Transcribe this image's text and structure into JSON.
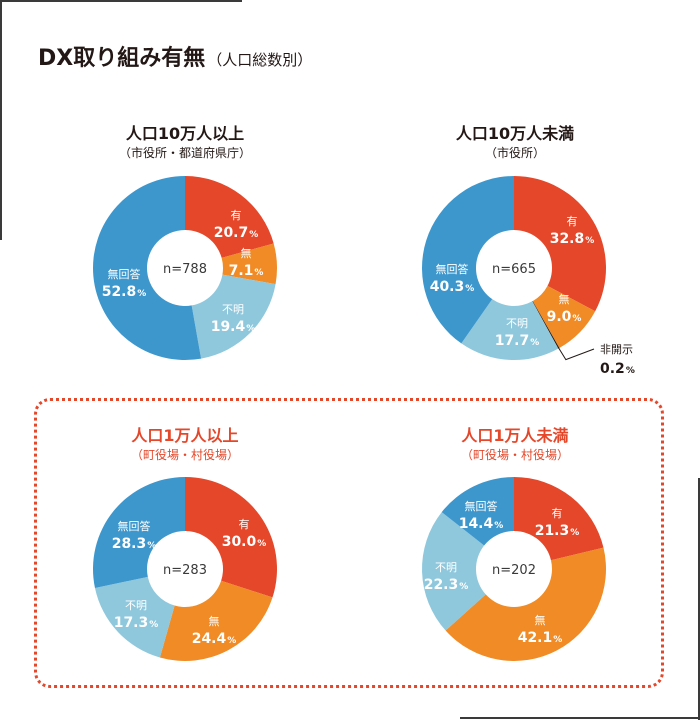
{
  "title": {
    "main": "DX取り組み有無",
    "sub": "（人口総数別）"
  },
  "colors": {
    "yes": "#e4472a",
    "no": "#f08b26",
    "unknown": "#8fc8dc",
    "no_answer": "#3d97cc",
    "undisclosed": "#231815",
    "highlight": "#e4472a"
  },
  "chart_data": [
    {
      "type": "pie",
      "title": "人口10万人以上",
      "subtitle": "（市役所・都道府県庁）",
      "n_label": "n=788",
      "categories": [
        "有",
        "無",
        "不明",
        "無回答"
      ],
      "values": [
        20.7,
        7.1,
        19.4,
        52.8
      ],
      "value_labels": [
        "20.7",
        "7.1",
        "19.4",
        "52.8"
      ],
      "unit": "%"
    },
    {
      "type": "pie",
      "title": "人口10万人未満",
      "subtitle": "（市役所）",
      "n_label": "n=665",
      "categories": [
        "有",
        "無",
        "非開示",
        "不明",
        "無回答"
      ],
      "values": [
        32.8,
        9.0,
        0.2,
        17.7,
        40.3
      ],
      "value_labels": [
        "32.8",
        "9.0",
        "0.2",
        "17.7",
        "40.3"
      ],
      "unit": "%"
    },
    {
      "type": "pie",
      "title": "人口1万人以上",
      "subtitle": "（町役場・村役場）",
      "n_label": "n=283",
      "categories": [
        "有",
        "無",
        "不明",
        "無回答"
      ],
      "values": [
        30.0,
        24.4,
        17.3,
        28.3
      ],
      "value_labels": [
        "30.0",
        "24.4",
        "17.3",
        "28.3"
      ],
      "unit": "%"
    },
    {
      "type": "pie",
      "title": "人口1万人未満",
      "subtitle": "（町役場・村役場）",
      "n_label": "n=202",
      "categories": [
        "有",
        "無",
        "不明",
        "無回答"
      ],
      "values": [
        21.3,
        42.1,
        22.3,
        14.4
      ],
      "value_labels": [
        "21.3",
        "42.1",
        "22.3",
        "14.4"
      ],
      "unit": "%"
    }
  ]
}
